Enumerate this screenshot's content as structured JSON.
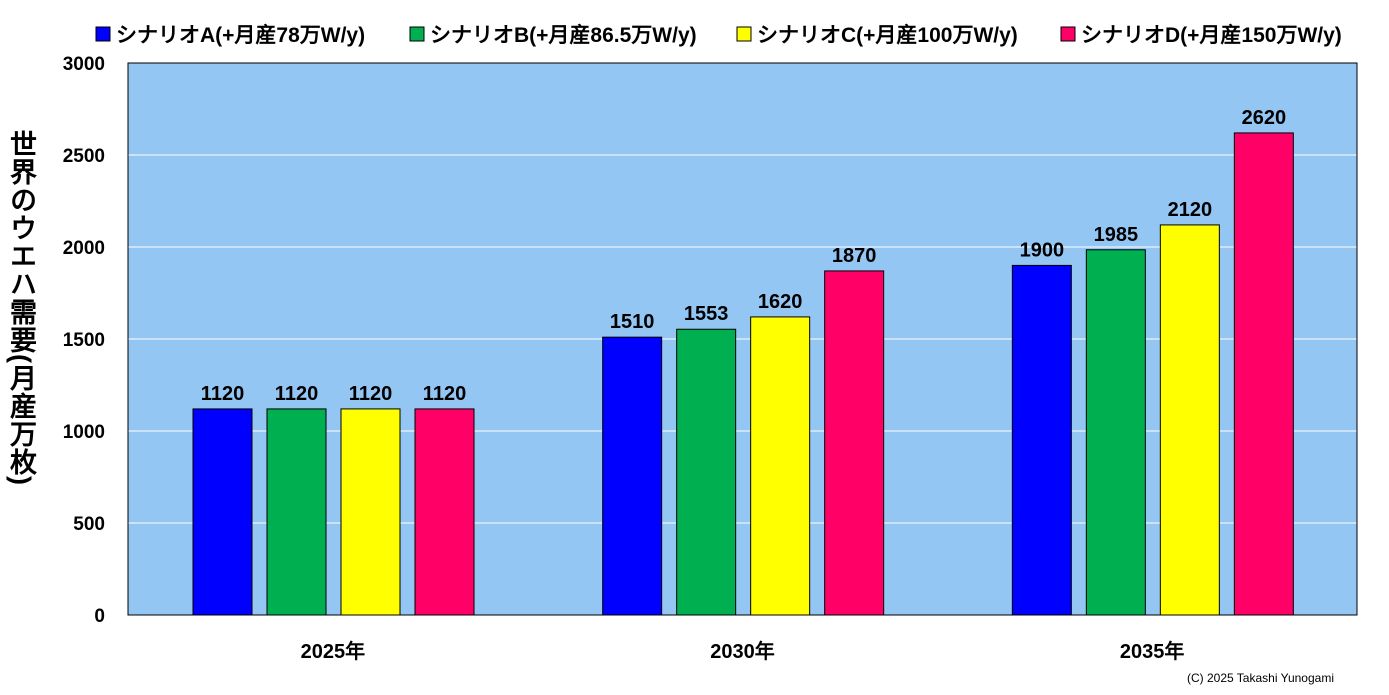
{
  "chart_data": {
    "type": "bar",
    "title": "",
    "xlabel": "",
    "ylabel": "世界のウエハ需要(月産万枚)",
    "ylim": [
      0,
      3000
    ],
    "yticks": [
      0,
      500,
      1000,
      1500,
      2000,
      2500,
      3000
    ],
    "grid": true,
    "legend_position": "top",
    "categories": [
      "2025年",
      "2030年",
      "2035年"
    ],
    "series": [
      {
        "name": "シナリオA(+月産78万W/y)",
        "color": "#0000FF",
        "values": [
          1120,
          1510,
          1900
        ]
      },
      {
        "name": "シナリオB(+月産86.5万W/y)",
        "color": "#00B050",
        "values": [
          1120,
          1553,
          1985
        ]
      },
      {
        "name": "シナリオC(+月産100万W/y)",
        "color": "#FFFF00",
        "values": [
          1120,
          1620,
          2120
        ]
      },
      {
        "name": "シナリオD(+月産150万W/y)",
        "color": "#FF0066",
        "values": [
          1120,
          1870,
          2620
        ]
      }
    ],
    "plot_background": "#94C6F4"
  },
  "copyright": "(C) 2025 Takashi Yunogami"
}
